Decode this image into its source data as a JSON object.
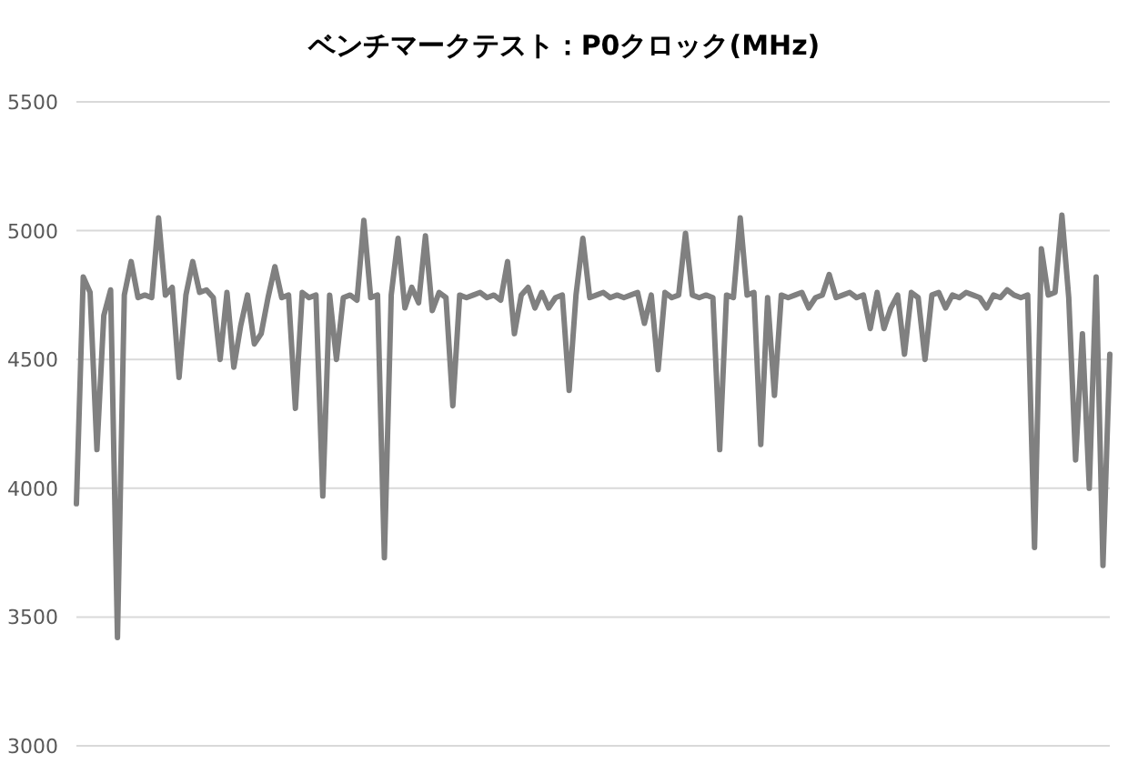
{
  "chart_data": {
    "type": "line",
    "title": "ベンチマークテスト：P0クロック(MHz)",
    "categories": [
      null,
      null,
      null,
      null,
      null,
      null,
      null,
      null,
      null,
      null,
      null,
      null,
      null,
      null,
      null,
      null,
      null,
      null,
      null,
      null,
      null,
      null,
      null,
      null,
      null,
      null,
      null,
      null,
      null,
      null,
      null,
      null,
      null,
      null,
      null,
      null,
      null,
      null,
      null,
      null,
      null,
      null,
      null,
      null,
      null,
      null,
      null,
      null,
      null,
      null,
      null,
      null,
      null,
      null,
      null,
      null,
      null,
      null,
      null,
      null,
      null,
      null,
      null,
      null,
      null,
      null,
      null,
      null,
      null,
      null,
      null,
      null,
      null,
      null,
      null,
      null,
      null,
      null,
      null,
      null,
      null,
      null,
      null,
      null,
      null,
      null,
      null,
      null,
      null,
      null,
      null,
      null,
      null,
      null,
      null,
      null,
      null,
      null,
      null,
      null,
      null,
      null,
      null,
      null,
      null,
      null,
      null,
      null,
      null,
      null,
      null,
      null,
      null,
      null,
      null,
      null,
      null,
      null,
      null,
      null,
      null,
      null,
      null,
      null,
      null,
      null,
      null,
      null,
      null,
      null,
      null,
      null,
      null,
      null,
      null,
      null,
      null,
      null,
      null,
      null,
      null,
      null,
      null,
      null,
      null,
      null,
      null,
      null,
      null,
      null,
      null,
      null
    ],
    "series": [
      {
        "color": "#808080",
        "values": [
          3940,
          4820,
          4760,
          4150,
          4670,
          4770,
          3420,
          4750,
          4880,
          4740,
          4750,
          4740,
          5050,
          4750,
          4780,
          4430,
          4750,
          4880,
          4760,
          4770,
          4740,
          4500,
          4760,
          4470,
          4630,
          4750,
          4560,
          4600,
          4740,
          4860,
          4740,
          4750,
          4310,
          4760,
          4740,
          4750,
          3970,
          4750,
          4500,
          4740,
          4750,
          4730,
          5040,
          4740,
          4750,
          3730,
          4750,
          4970,
          4700,
          4780,
          4720,
          4980,
          4690,
          4760,
          4740,
          4320,
          4750,
          4740,
          4750,
          4760,
          4740,
          4750,
          4730,
          4880,
          4600,
          4750,
          4780,
          4700,
          4760,
          4700,
          4740,
          4750,
          4380,
          4750,
          4970,
          4740,
          4750,
          4760,
          4740,
          4750,
          4740,
          4750,
          4760,
          4640,
          4750,
          4460,
          4760,
          4740,
          4750,
          4990,
          4750,
          4740,
          4750,
          4740,
          4150,
          4750,
          4740,
          5050,
          4750,
          4760,
          4170,
          4740,
          4360,
          4750,
          4740,
          4750,
          4760,
          4700,
          4740,
          4750,
          4830,
          4740,
          4750,
          4760,
          4740,
          4750,
          4620,
          4760,
          4620,
          4700,
          4750,
          4520,
          4760,
          4740,
          4500,
          4750,
          4760,
          4700,
          4750,
          4740,
          4760,
          4750,
          4740,
          4700,
          4750,
          4740,
          4770,
          4750,
          4740,
          4750,
          3770,
          4930,
          4750,
          4760,
          5060,
          4740,
          4110,
          4600,
          4000,
          4820,
          3700,
          4520
        ]
      }
    ],
    "ylim": [
      3000,
      5500
    ],
    "yticks": [
      3000,
      3500,
      4000,
      4500,
      5000,
      5500
    ],
    "grid": "y",
    "tick_labels": "y",
    "marker": "none",
    "line_style": "solid"
  }
}
